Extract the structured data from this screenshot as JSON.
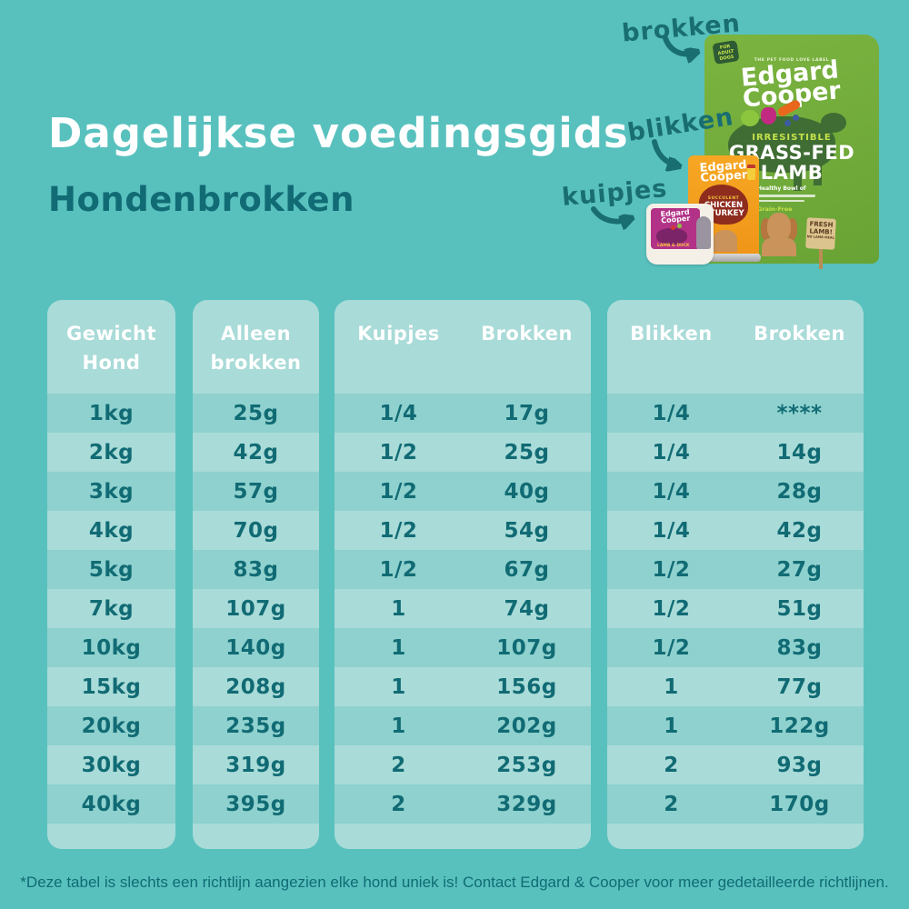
{
  "page": {
    "title": "Dagelijkse voedingsgids",
    "subtitle": "Hondenbrokken",
    "footnote": "*Deze tabel is slechts een richtlijn aangezien elke hond uniek is! Contact Edgard & Cooper voor meer gedetailleerde richtlijnen."
  },
  "annotations": {
    "brokken": "brokken",
    "blikken": "blikken",
    "kuipjes": "kuipjes"
  },
  "products": {
    "bag": {
      "badge": "FOR ADULT DOGS",
      "tagline": "THE PET FOOD LOVE LABEL",
      "brand_top": "Edgard",
      "brand_bottom": "Cooper",
      "tag": "IRRESISTIBLE",
      "flavor_top": "GRASS-FED",
      "flavor_bottom": "LAMB",
      "healthy": "Healthy Bowl of",
      "grain_free": "Grain-Free",
      "sign": "FRESH LAMB!",
      "sign_small": "NO LAMB MEAL"
    },
    "can": {
      "brand_top": "Edgard",
      "brand_bottom": "Cooper",
      "tag": "SUCCULENT",
      "flavor_top": "CHICKEN",
      "flavor_bottom": "&TURKEY"
    },
    "tray": {
      "brand_top": "Edgard",
      "brand_bottom": "Cooper",
      "flavor": "LAMB & DUCK"
    }
  },
  "tables": [
    {
      "header_lines": [
        "Gewicht",
        "Hond"
      ],
      "rows": [
        "1kg",
        "2kg",
        "3kg",
        "4kg",
        "5kg",
        "7kg",
        "10kg",
        "15kg",
        "20kg",
        "30kg",
        "40kg"
      ]
    },
    {
      "header_lines": [
        "Alleen",
        "brokken"
      ],
      "rows": [
        "25g",
        "42g",
        "57g",
        "70g",
        "83g",
        "107g",
        "140g",
        "208g",
        "235g",
        "319g",
        "395g"
      ]
    },
    {
      "headers": [
        "Kuipjes",
        "Brokken"
      ],
      "rows": [
        [
          "1/4",
          "17g"
        ],
        [
          "1/2",
          "25g"
        ],
        [
          "1/2",
          "40g"
        ],
        [
          "1/2",
          "54g"
        ],
        [
          "1/2",
          "67g"
        ],
        [
          "1",
          "74g"
        ],
        [
          "1",
          "107g"
        ],
        [
          "1",
          "156g"
        ],
        [
          "1",
          "202g"
        ],
        [
          "2",
          "253g"
        ],
        [
          "2",
          "329g"
        ]
      ]
    },
    {
      "headers": [
        "Blikken",
        "Brokken"
      ],
      "rows": [
        [
          "1/4",
          "****"
        ],
        [
          "1/4",
          "14g"
        ],
        [
          "1/4",
          "28g"
        ],
        [
          "1/4",
          "42g"
        ],
        [
          "1/2",
          "27g"
        ],
        [
          "1/2",
          "51g"
        ],
        [
          "1/2",
          "83g"
        ],
        [
          "1",
          "77g"
        ],
        [
          "1",
          "122g"
        ],
        [
          "2",
          "93g"
        ],
        [
          "2",
          "170g"
        ]
      ]
    }
  ],
  "colors": {
    "background": "#58c1be",
    "panel": "#a9dbd8",
    "row_alt": "#8ed1ce",
    "ink": "#116b74",
    "header_text": "#ffffff",
    "bag_green": "#74ae3d",
    "can_orange": "#f49e1f",
    "tray_magenta": "#b23287"
  }
}
